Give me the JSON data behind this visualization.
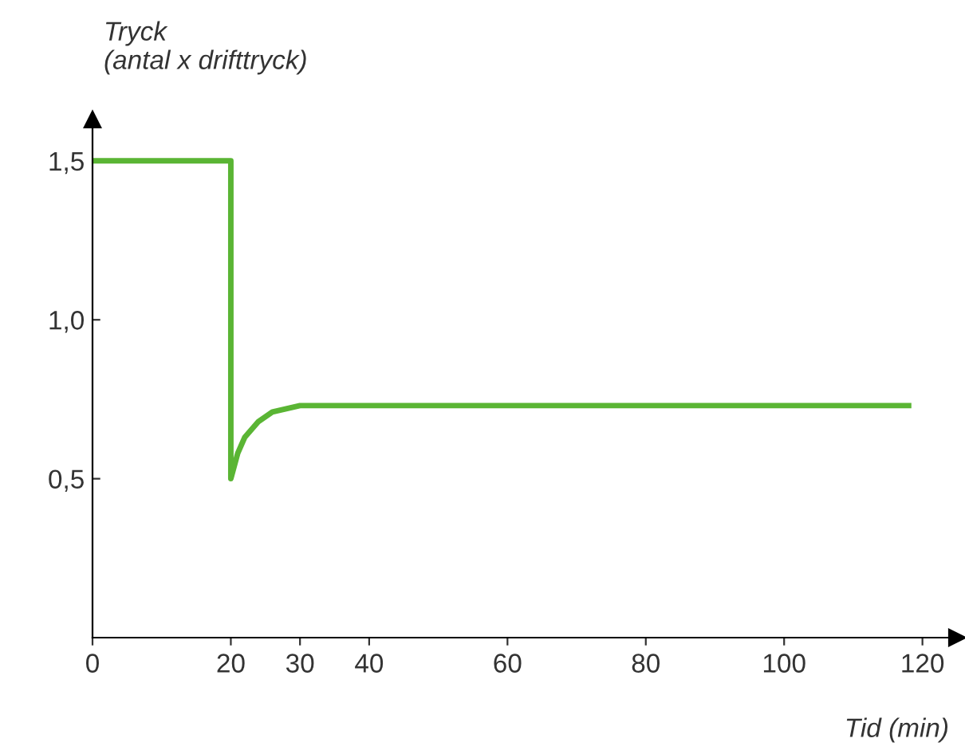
{
  "chart_data": {
    "type": "line",
    "ylabel": "Tryck\n(antal x drifttryck)",
    "xlabel": "Tid (min)",
    "x": [
      0,
      18.5,
      20,
      20,
      21,
      22,
      24,
      26,
      28,
      30,
      118
    ],
    "series": [
      {
        "color": "#5ab534",
        "values": [
          1.5,
          1.5,
          1.5,
          0.5,
          0.58,
          0.63,
          0.68,
          0.71,
          0.72,
          0.73,
          0.73
        ]
      }
    ],
    "xlim": [
      0,
      125
    ],
    "ylim": [
      0,
      1.63
    ],
    "xticks": [
      0,
      20,
      30,
      40,
      60,
      80,
      100,
      120
    ],
    "yticks": [
      {
        "value": 0.5,
        "label": "0,5"
      },
      {
        "value": 1.0,
        "label": "1,0"
      },
      {
        "value": 1.5,
        "label": "1,5"
      }
    ],
    "grid": false,
    "legend": false,
    "marker": "none",
    "line_style": "solid"
  }
}
